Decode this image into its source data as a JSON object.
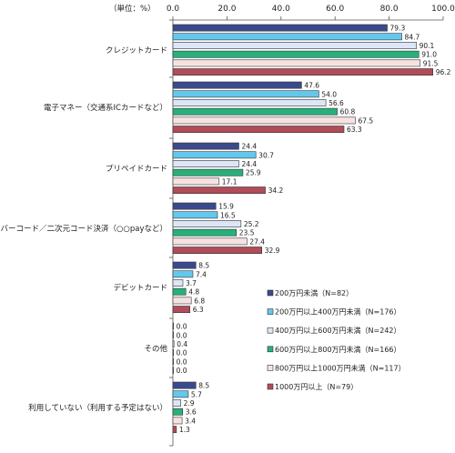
{
  "chart_data": {
    "type": "bar",
    "orientation": "horizontal",
    "unit_label": "（単位：%）",
    "xlim": [
      0,
      100
    ],
    "x_ticks": [
      "0.0",
      "20.0",
      "40.0",
      "60.0",
      "80.0",
      "100.0"
    ],
    "grid": false,
    "legend_position": "bottom-right",
    "categories": [
      "クレジットカード",
      "電子マネー（交通系ICカードなど）",
      "プリペイドカード",
      "バーコード／二次元コード決済（○○payなど）",
      "デビットカード",
      "その他",
      "利用していない（利用する予定はない）"
    ],
    "series": [
      {
        "name": "200万円未満（N=82）",
        "color": "#3a4a8c",
        "values": [
          79.3,
          47.6,
          24.4,
          15.9,
          8.5,
          0.0,
          8.5
        ]
      },
      {
        "name": "200万円以上400万円未満（N=176）",
        "color": "#63c8ee",
        "values": [
          84.7,
          54.0,
          30.7,
          16.5,
          7.4,
          0.0,
          5.7
        ]
      },
      {
        "name": "400万円以上600万円未満（N=242）",
        "color": "#dde6f6",
        "values": [
          90.1,
          56.6,
          24.4,
          25.2,
          3.7,
          0.4,
          2.9
        ]
      },
      {
        "name": "600万円以上800万円未満（N=166）",
        "color": "#27b07a",
        "values": [
          91.0,
          60.8,
          25.9,
          23.5,
          4.8,
          0.0,
          3.6
        ]
      },
      {
        "name": "800万円以上1000万円未満（N=117）",
        "color": "#f7e2e2",
        "values": [
          91.5,
          67.5,
          17.1,
          27.4,
          6.8,
          0.0,
          3.4
        ]
      },
      {
        "name": "1000万円以上（N=79）",
        "color": "#b14c59",
        "values": [
          96.2,
          63.3,
          34.2,
          32.9,
          6.3,
          0.0,
          1.3
        ]
      }
    ]
  }
}
